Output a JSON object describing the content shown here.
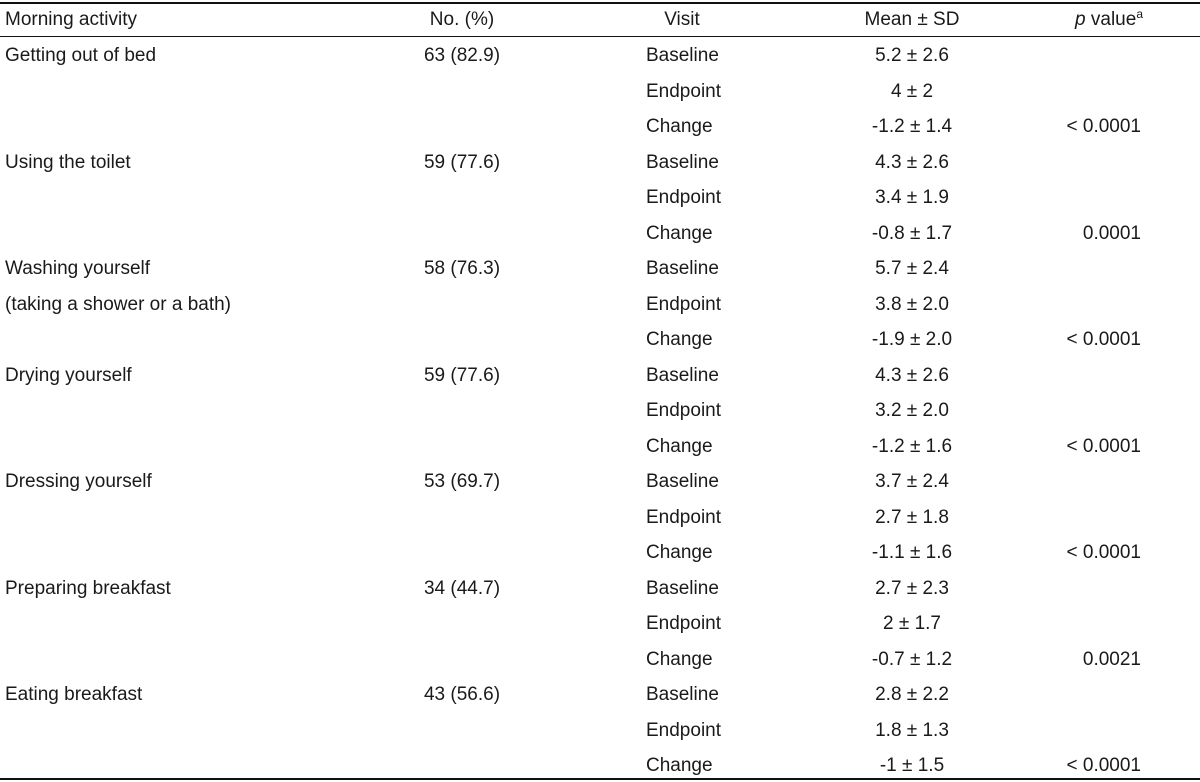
{
  "table": {
    "headers": {
      "activity": "Morning activity",
      "no_pct": "No. (%)",
      "visit": "Visit",
      "mean_sd": "Mean ± SD",
      "p_value": "p",
      "p_value_rest": " value",
      "p_value_sup": "a"
    },
    "groups": [
      {
        "activity": [
          "Getting out of bed"
        ],
        "no_pct": "63 (82.9)",
        "rows": [
          {
            "visit": "Baseline",
            "mean_sd": "5.2 ± 2.6",
            "p": ""
          },
          {
            "visit": "Endpoint",
            "mean_sd": "4 ± 2",
            "p": ""
          },
          {
            "visit": "Change",
            "mean_sd": "-1.2 ± 1.4",
            "p": "< 0.0001"
          }
        ]
      },
      {
        "activity": [
          "Using the toilet"
        ],
        "no_pct": "59 (77.6)",
        "rows": [
          {
            "visit": "Baseline",
            "mean_sd": "4.3 ± 2.6",
            "p": ""
          },
          {
            "visit": "Endpoint",
            "mean_sd": "3.4 ± 1.9",
            "p": ""
          },
          {
            "visit": "Change",
            "mean_sd": "-0.8 ± 1.7",
            "p": "0.0001"
          }
        ]
      },
      {
        "activity": [
          "Washing yourself",
          "(taking a shower or a bath)"
        ],
        "no_pct": "58 (76.3)",
        "rows": [
          {
            "visit": "Baseline",
            "mean_sd": "5.7 ± 2.4",
            "p": ""
          },
          {
            "visit": "Endpoint",
            "mean_sd": "3.8 ± 2.0",
            "p": ""
          },
          {
            "visit": "Change",
            "mean_sd": "-1.9 ± 2.0",
            "p": "< 0.0001"
          }
        ]
      },
      {
        "activity": [
          "Drying yourself"
        ],
        "no_pct": "59 (77.6)",
        "rows": [
          {
            "visit": "Baseline",
            "mean_sd": "4.3 ± 2.6",
            "p": ""
          },
          {
            "visit": "Endpoint",
            "mean_sd": "3.2 ± 2.0",
            "p": ""
          },
          {
            "visit": "Change",
            "mean_sd": "-1.2 ± 1.6",
            "p": "< 0.0001"
          }
        ]
      },
      {
        "activity": [
          "Dressing yourself"
        ],
        "no_pct": "53 (69.7)",
        "rows": [
          {
            "visit": "Baseline",
            "mean_sd": "3.7 ± 2.4",
            "p": ""
          },
          {
            "visit": "Endpoint",
            "mean_sd": "2.7 ± 1.8",
            "p": ""
          },
          {
            "visit": "Change",
            "mean_sd": "-1.1 ± 1.6",
            "p": "< 0.0001"
          }
        ]
      },
      {
        "activity": [
          "Preparing breakfast"
        ],
        "no_pct": "34 (44.7)",
        "rows": [
          {
            "visit": "Baseline",
            "mean_sd": "2.7 ± 2.3",
            "p": ""
          },
          {
            "visit": "Endpoint",
            "mean_sd": "2 ± 1.7",
            "p": ""
          },
          {
            "visit": "Change",
            "mean_sd": "-0.7 ± 1.2",
            "p": "0.0021"
          }
        ]
      },
      {
        "activity": [
          "Eating breakfast"
        ],
        "no_pct": "43 (56.6)",
        "rows": [
          {
            "visit": "Baseline",
            "mean_sd": "2.8 ± 2.2",
            "p": ""
          },
          {
            "visit": "Endpoint",
            "mean_sd": "1.8 ± 1.3",
            "p": ""
          },
          {
            "visit": "Change",
            "mean_sd": "-1 ± 1.5",
            "p": "< 0.0001"
          }
        ]
      }
    ]
  }
}
